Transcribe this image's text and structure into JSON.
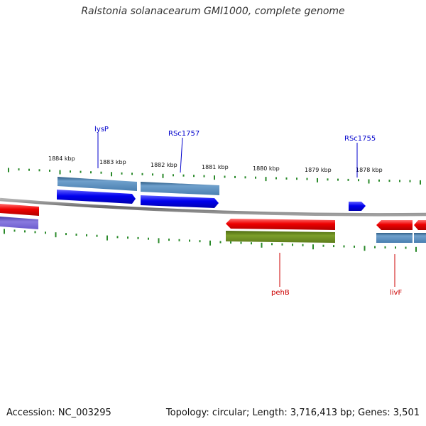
{
  "title": "Ralstonia solanacearum GMI1000, complete genome",
  "footer": {
    "accession": "Accession: NC_003295",
    "summary": "Topology: circular; Length: 3,716,413 bp; Genes: 3,501"
  },
  "colors": {
    "forward_cds": "#0000ee",
    "forward_gene": "#4a7fb0",
    "reverse_cds": "#ee0000",
    "reverse_gene_olive": "#6b8e23",
    "reverse_gene_purple": "#6a5acd",
    "reverse_gene_blue": "#4a7fb0",
    "backbone": "#808080",
    "ticks": "#2a8a2a",
    "label_forward": "#0000cc",
    "label_reverse": "#cc0000"
  },
  "scale_labels": [
    "1884 kbp",
    "1883 kbp",
    "1882 kbp",
    "1881 kbp",
    "1880 kbp",
    "1879 kbp",
    "1878 kbp"
  ],
  "gene_labels": {
    "lysP": "lysP",
    "RSc1757": "RSc1757",
    "RSc1755": "RSc1755",
    "pehB": "pehB",
    "livF": "livF"
  }
}
